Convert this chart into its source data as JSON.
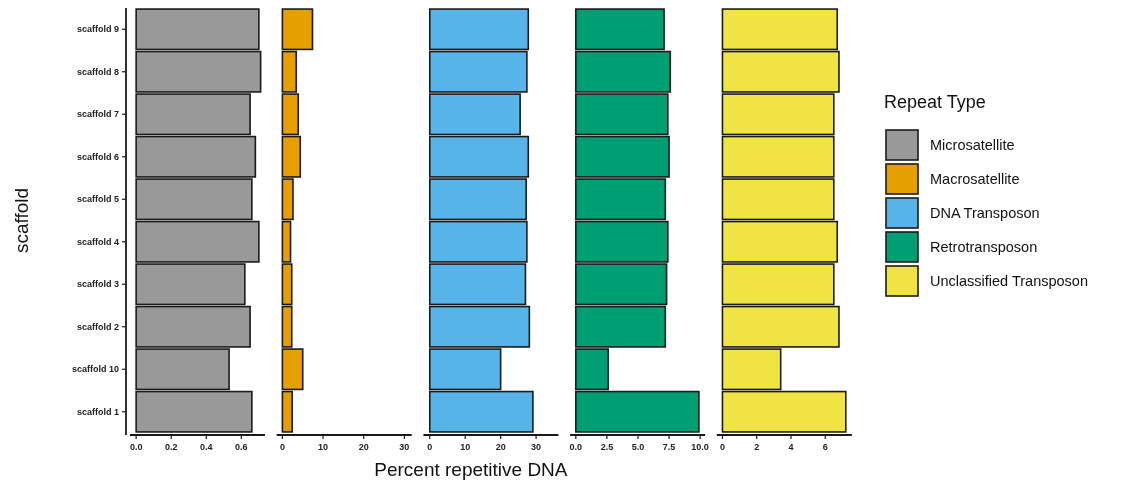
{
  "chart_data": [
    {
      "type": "bar",
      "orientation": "horizontal",
      "ylabel": "scaffold",
      "legend_title": "Repeat Type",
      "legend": "right",
      "categories": [
        "scaffold 9",
        "scaffold 8",
        "scaffold 7",
        "scaffold 6",
        "scaffold 5",
        "scaffold 4",
        "scaffold 3",
        "scaffold 2",
        "scaffold 10",
        "scaffold 1"
      ],
      "xlim": [
        -0.035,
        0.735
      ],
      "xticks": [
        {
          "value": 0,
          "label": "0.0"
        },
        0.2,
        0.4,
        0.6
      ],
      "series": [
        {
          "name": "Microsatellite",
          "color": "#999999",
          "values": [
            0.7,
            0.71,
            0.65,
            0.68,
            0.66,
            0.7,
            0.62,
            0.65,
            0.53,
            0.66
          ]
        }
      ]
    },
    {
      "type": "bar",
      "orientation": "horizontal",
      "legend": "right",
      "tick_labels": "x",
      "categories": [
        "scaffold 9",
        "scaffold 8",
        "scaffold 7",
        "scaffold 6",
        "scaffold 5",
        "scaffold 4",
        "scaffold 3",
        "scaffold 2",
        "scaffold 10",
        "scaffold 1"
      ],
      "xlim": [
        -1.4,
        31.8
      ],
      "xticks": [
        0,
        10,
        20,
        30
      ],
      "series": [
        {
          "name": "Macrosatellite",
          "color": "#e69f00",
          "values": [
            7.4,
            3.4,
            3.9,
            4.4,
            2.6,
            2.0,
            2.3,
            2.3,
            5.0,
            2.4
          ]
        }
      ]
    },
    {
      "type": "bar",
      "orientation": "horizontal",
      "legend": "right",
      "tick_labels": "x",
      "xlabel": "Percent repetitive DNA",
      "categories": [
        "scaffold 9",
        "scaffold 8",
        "scaffold 7",
        "scaffold 6",
        "scaffold 5",
        "scaffold 4",
        "scaffold 3",
        "scaffold 2",
        "scaffold 10",
        "scaffold 1"
      ],
      "xlim": [
        -1.8,
        36.3
      ],
      "xticks": [
        0,
        10,
        20,
        30
      ],
      "series": [
        {
          "name": "DNA Transposon",
          "color": "#56b4e9",
          "values": [
            27.8,
            27.4,
            25.5,
            27.8,
            27.2,
            27.4,
            27.0,
            28.1,
            20.0,
            29.1
          ]
        }
      ]
    },
    {
      "type": "bar",
      "orientation": "horizontal",
      "legend": "right",
      "tick_labels": "x",
      "categories": [
        "scaffold 9",
        "scaffold 8",
        "scaffold 7",
        "scaffold 6",
        "scaffold 5",
        "scaffold 4",
        "scaffold 3",
        "scaffold 2",
        "scaffold 10",
        "scaffold 1"
      ],
      "xlim": [
        -0.46,
        10.4
      ],
      "xticks": [
        {
          "value": 0,
          "label": "0.0"
        },
        2.5,
        {
          "value": 5,
          "label": "5.0"
        },
        7.5,
        {
          "value": 10,
          "label": "10.0"
        }
      ],
      "series": [
        {
          "name": "Retrotransposon",
          "color": "#009e73",
          "values": [
            7.1,
            7.6,
            7.4,
            7.5,
            7.2,
            7.4,
            7.3,
            7.2,
            2.6,
            9.9
          ]
        }
      ]
    },
    {
      "type": "bar",
      "orientation": "horizontal",
      "legend": "right",
      "tick_labels": "x",
      "categories": [
        "scaffold 9",
        "scaffold 8",
        "scaffold 7",
        "scaffold 6",
        "scaffold 5",
        "scaffold 4",
        "scaffold 3",
        "scaffold 2",
        "scaffold 10",
        "scaffold 1"
      ],
      "xlim": [
        -0.33,
        7.55
      ],
      "xticks": [
        0,
        2,
        4,
        6
      ],
      "series": [
        {
          "name": "Unclassified Transposon",
          "color": "#f0e442",
          "values": [
            6.7,
            6.8,
            6.5,
            6.5,
            6.5,
            6.7,
            6.5,
            6.8,
            3.4,
            7.2
          ]
        }
      ]
    }
  ]
}
